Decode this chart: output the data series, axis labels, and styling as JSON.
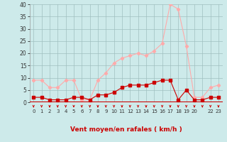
{
  "x_values": [
    0,
    1,
    2,
    3,
    4,
    5,
    6,
    7,
    8,
    9,
    10,
    11,
    12,
    13,
    14,
    15,
    16,
    17,
    18,
    19,
    20,
    21,
    22,
    23
  ],
  "x_labels": [
    "0",
    "1",
    "2",
    "3",
    "4",
    "5",
    "6",
    "7",
    "8",
    "9",
    "10",
    "11",
    "12",
    "13",
    "14",
    "15",
    "16",
    "17",
    "18",
    "19",
    "20",
    "",
    "22",
    "23"
  ],
  "wind_avg": [
    2,
    2,
    1,
    1,
    1,
    2,
    2,
    1,
    3,
    3,
    4,
    6,
    7,
    7,
    7,
    8,
    9,
    9,
    1,
    5,
    1,
    1,
    2,
    2
  ],
  "wind_gust": [
    9,
    9,
    6,
    6,
    9,
    9,
    1,
    1,
    9,
    12,
    16,
    18,
    19,
    20,
    19,
    21,
    24,
    40,
    38,
    23,
    2,
    2,
    6,
    7
  ],
  "xlabel": "Vent moyen/en rafales ( km/h )",
  "bg_color": "#cdeaea",
  "grid_color": "#a0bfbf",
  "color_avg": "#cc0000",
  "color_gust": "#ffaaaa",
  "ylim_min": 0,
  "ylim_max": 40,
  "yticks": [
    0,
    5,
    10,
    15,
    20,
    25,
    30,
    35,
    40
  ],
  "ytick_labels": [
    "0",
    "5",
    "10",
    "15",
    "20",
    "25",
    "30",
    "35",
    "40"
  ]
}
